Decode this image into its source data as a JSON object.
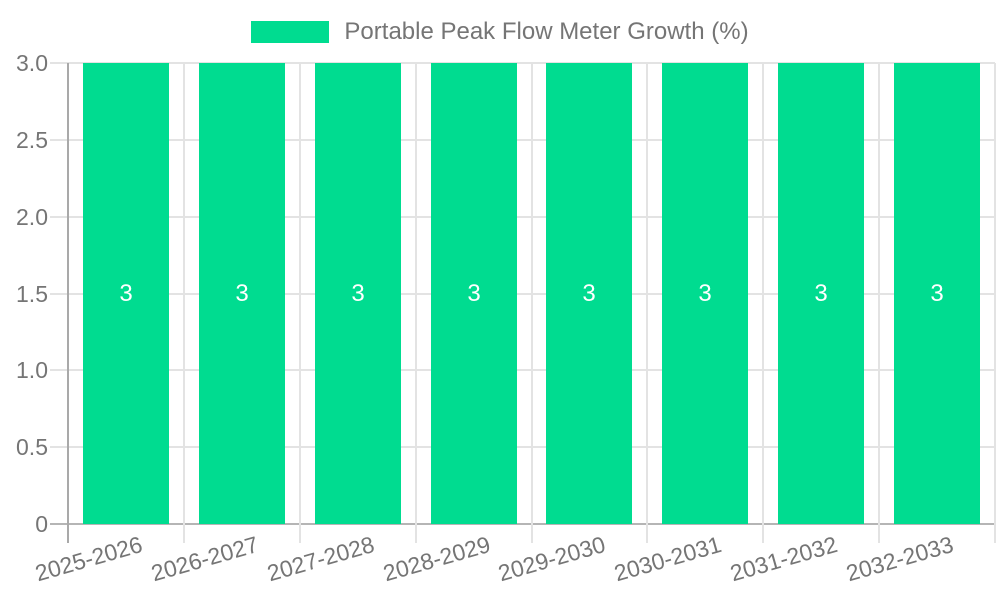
{
  "chart_data": {
    "type": "bar",
    "title": "Portable Peak Flow Meter Growth (%)",
    "categories": [
      "2025-2026",
      "2026-2027",
      "2027-2028",
      "2028-2029",
      "2029-2030",
      "2030-2031",
      "2031-2032",
      "2032-2033"
    ],
    "values": [
      3,
      3,
      3,
      3,
      3,
      3,
      3,
      3
    ],
    "bar_value_labels": [
      "3",
      "3",
      "3",
      "3",
      "3",
      "3",
      "3",
      "3"
    ],
    "xlabel": "",
    "ylabel": "",
    "ylim": [
      0,
      3
    ],
    "yticks": [
      {
        "value": 0,
        "label": "0"
      },
      {
        "value": 0.5,
        "label": "0.5"
      },
      {
        "value": 1,
        "label": "1.0"
      },
      {
        "value": 1.5,
        "label": "1.5"
      },
      {
        "value": 2,
        "label": "2.0"
      },
      {
        "value": 2.5,
        "label": "2.5"
      },
      {
        "value": 3,
        "label": "3.0"
      }
    ],
    "grid": true,
    "legend_position": "top",
    "xtick_rotation_deg": -16,
    "colors": {
      "bar": "#00DC90",
      "bar_label": "#FFFFFF",
      "axis_text": "#757575",
      "gridline": "#E3E3E3",
      "baseline": "#B5B5B5",
      "yaxis_line": "#A9A9A9",
      "background": "#FFFFFF"
    }
  }
}
